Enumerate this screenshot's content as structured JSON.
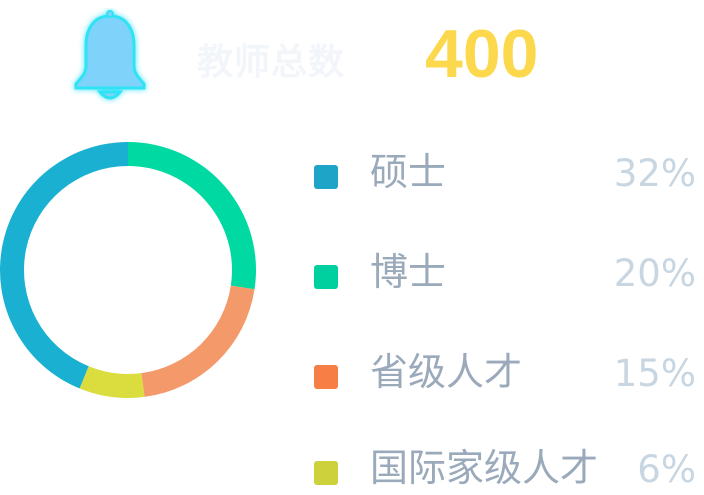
{
  "header": {
    "label": "教师总数",
    "value": "400",
    "icon": "bell-icon"
  },
  "chart_data": {
    "type": "pie",
    "style": "donut",
    "categories": [
      "硕士",
      "博士",
      "省级人才",
      "国际家级人才"
    ],
    "values": [
      32,
      20,
      15,
      6
    ],
    "value_labels": [
      "32%",
      "20%",
      "15%",
      "6%"
    ],
    "colors": [
      "#19b0d1",
      "#00d9a2",
      "#f49a6a",
      "#dadd3d"
    ],
    "swatch_colors": [
      "#1ea4c6",
      "#00cfa0",
      "#f77f45",
      "#cdd13c"
    ],
    "legend_placement": "right"
  }
}
